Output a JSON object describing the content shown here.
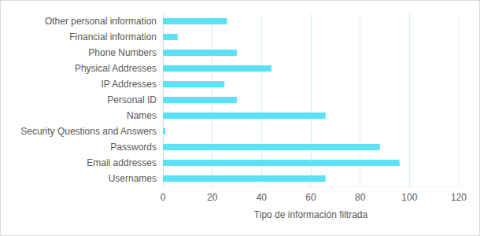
{
  "chart_data": {
    "type": "bar",
    "orientation": "horizontal",
    "x_label": "Tipo de información filtrada",
    "categories": [
      "Usernames",
      "Email addresses",
      "Passwords",
      "Security Questions and Answers",
      "Names",
      "Personal ID",
      "IP Addresses",
      "Physical Addresses",
      "Phone Numbers",
      "Financial information",
      "Other personal information"
    ],
    "values": [
      66,
      96,
      88,
      1,
      66,
      30,
      25,
      44,
      30,
      6,
      26
    ],
    "color": "#5ce1f5",
    "xlim": [
      0,
      120
    ],
    "xticks": [
      0,
      20,
      40,
      60,
      80,
      100,
      120
    ],
    "grid": true
  }
}
